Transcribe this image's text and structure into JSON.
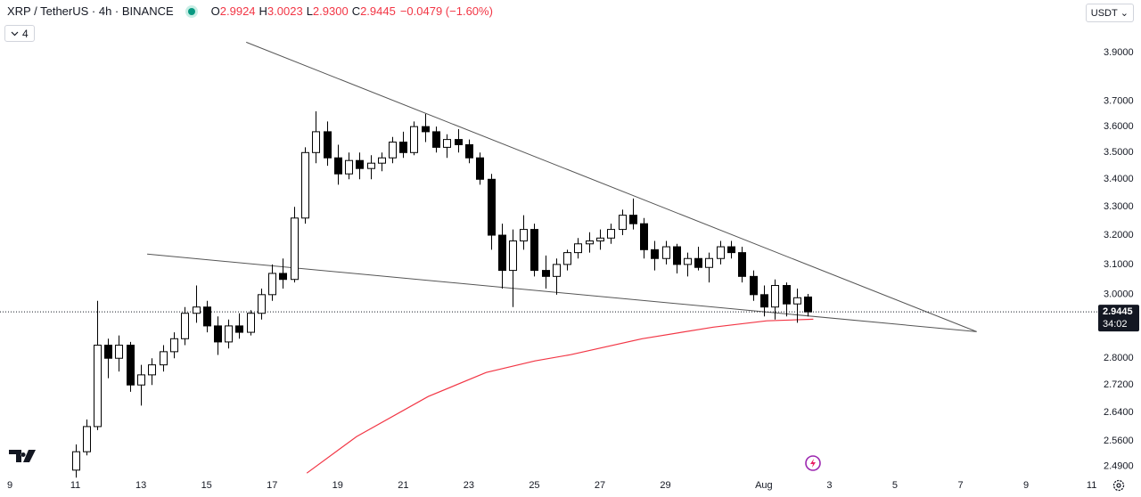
{
  "chart_data": {
    "type": "candlestick",
    "header": {
      "title": "XRP / TetherUS · 4h · BINANCE",
      "ohlc": [
        {
          "label": "O",
          "value": "2.9924"
        },
        {
          "label": "H",
          "value": "3.0023"
        },
        {
          "label": "L",
          "value": "2.9300"
        },
        {
          "label": "C",
          "value": "2.9445"
        }
      ],
      "change": "−0.0479 (−1.60%)",
      "indicators": "4",
      "currency": "USDT"
    },
    "log_scale": true,
    "grid": false,
    "up_color": "#ffffff",
    "down_color": "#000000",
    "x": [
      11,
      11.33,
      11.67,
      12,
      12.33,
      12.67,
      13,
      13.33,
      13.67,
      14,
      14.33,
      14.67,
      15,
      15.33,
      15.67,
      16,
      16.33,
      16.67,
      17,
      17.33,
      17.67,
      18,
      18.33,
      18.67,
      19,
      19.33,
      19.67,
      20,
      20.33,
      20.67,
      21,
      21.33,
      21.67,
      22,
      22.33,
      22.67,
      23,
      23.33,
      23.67,
      24,
      24.33,
      24.67,
      25,
      25.33,
      25.67,
      26,
      26.33,
      26.67,
      27,
      27.33,
      27.67,
      28,
      28.33,
      28.67,
      29,
      29.33,
      29.67,
      30,
      30.33,
      30.67,
      31,
      31.33,
      31.67,
      32,
      32.33,
      32.67,
      33,
      33.33
    ],
    "open": [
      2.48,
      2.53,
      2.6,
      2.84,
      2.8,
      2.84,
      2.72,
      2.75,
      2.78,
      2.82,
      2.86,
      2.94,
      2.96,
      2.9,
      2.85,
      2.9,
      2.88,
      2.94,
      3.0,
      3.07,
      3.05,
      3.26,
      3.5,
      3.58,
      3.48,
      3.42,
      3.47,
      3.44,
      3.46,
      3.48,
      3.54,
      3.5,
      3.6,
      3.58,
      3.52,
      3.55,
      3.53,
      3.48,
      3.4,
      3.2,
      3.08,
      3.18,
      3.22,
      3.08,
      3.06,
      3.1,
      3.14,
      3.17,
      3.18,
      3.19,
      3.22,
      3.27,
      3.24,
      3.15,
      3.12,
      3.16,
      3.1,
      3.12,
      3.09,
      3.12,
      3.16,
      3.14,
      3.06,
      3.0,
      2.96,
      3.03,
      2.97,
      2.9924
    ],
    "high": [
      2.55,
      2.62,
      2.98,
      2.86,
      2.87,
      2.85,
      2.78,
      2.8,
      2.84,
      2.88,
      2.96,
      3.03,
      2.98,
      2.93,
      2.92,
      2.94,
      2.95,
      3.02,
      3.1,
      3.12,
      3.3,
      3.52,
      3.66,
      3.62,
      3.53,
      3.5,
      3.5,
      3.49,
      3.5,
      3.56,
      3.58,
      3.62,
      3.65,
      3.6,
      3.57,
      3.59,
      3.55,
      3.5,
      3.42,
      3.24,
      3.22,
      3.27,
      3.24,
      3.13,
      3.12,
      3.15,
      3.19,
      3.21,
      3.22,
      3.24,
      3.29,
      3.33,
      3.26,
      3.18,
      3.18,
      3.17,
      3.14,
      3.16,
      3.14,
      3.18,
      3.18,
      3.16,
      3.08,
      3.03,
      3.05,
      3.04,
      3.02,
      3.0023
    ],
    "low": [
      2.46,
      2.52,
      2.59,
      2.74,
      2.76,
      2.7,
      2.66,
      2.72,
      2.76,
      2.8,
      2.84,
      2.91,
      2.88,
      2.81,
      2.83,
      2.86,
      2.87,
      2.92,
      2.98,
      3.02,
      3.04,
      3.24,
      3.46,
      3.45,
      3.38,
      3.4,
      3.4,
      3.4,
      3.43,
      3.46,
      3.48,
      3.49,
      3.54,
      3.5,
      3.48,
      3.5,
      3.46,
      3.38,
      3.15,
      3.02,
      2.96,
      3.15,
      3.06,
      3.02,
      3.0,
      3.08,
      3.12,
      3.14,
      3.15,
      3.17,
      3.2,
      3.22,
      3.12,
      3.08,
      3.1,
      3.07,
      3.06,
      3.08,
      3.04,
      3.1,
      3.12,
      3.04,
      2.98,
      2.93,
      2.92,
      2.93,
      2.91,
      2.93
    ],
    "close": [
      2.53,
      2.6,
      2.84,
      2.8,
      2.84,
      2.72,
      2.75,
      2.78,
      2.82,
      2.86,
      2.94,
      2.96,
      2.9,
      2.85,
      2.9,
      2.88,
      2.94,
      3.0,
      3.07,
      3.05,
      3.26,
      3.5,
      3.58,
      3.48,
      3.42,
      3.47,
      3.44,
      3.46,
      3.48,
      3.54,
      3.5,
      3.6,
      3.58,
      3.52,
      3.55,
      3.53,
      3.48,
      3.4,
      3.2,
      3.08,
      3.18,
      3.22,
      3.08,
      3.06,
      3.1,
      3.14,
      3.17,
      3.18,
      3.19,
      3.22,
      3.27,
      3.24,
      3.15,
      3.12,
      3.16,
      3.1,
      3.12,
      3.09,
      3.12,
      3.16,
      3.14,
      3.06,
      3.0,
      2.96,
      3.03,
      2.97,
      2.99,
      2.9445
    ],
    "moving_average": {
      "color": "#f23645",
      "x": [
        18.06,
        19.58,
        21.76,
        23.53,
        25.02,
        26.11,
        28.29,
        30.46,
        32.09,
        33.51
      ],
      "values": [
        2.472,
        2.572,
        2.686,
        2.757,
        2.792,
        2.811,
        2.86,
        2.896,
        2.916,
        2.921
      ]
    },
    "lines": [
      {
        "color": "#555555",
        "x": [
          16.21,
          38.49
        ],
        "y": [
          3.945,
          2.882
        ]
      },
      {
        "color": "#555555",
        "x": [
          13.19,
          38.49
        ],
        "y": [
          3.135,
          2.882
        ]
      }
    ],
    "last_price": 2.9445,
    "countdown": "34:02",
    "xlim": [
      8.7,
      42.2
    ],
    "ylim": [
      2.451,
      4.13
    ],
    "xticks": [
      9,
      11,
      13,
      15,
      17,
      19,
      21,
      23,
      25,
      27,
      29,
      {
        "value": 32,
        "label": "Aug"
      },
      {
        "value": 34,
        "label": "3"
      },
      {
        "value": 36,
        "label": "5"
      },
      {
        "value": 38,
        "label": "7"
      },
      {
        "value": 40,
        "label": "9"
      },
      {
        "value": 42,
        "label": "11"
      }
    ],
    "yticks": [
      {
        "value": 3.9,
        "label": "3.9000"
      },
      {
        "value": 3.7,
        "label": "3.7000"
      },
      {
        "value": 3.6,
        "label": "3.6000"
      },
      {
        "value": 3.5,
        "label": "3.5000"
      },
      {
        "value": 3.4,
        "label": "3.4000"
      },
      {
        "value": 3.3,
        "label": "3.3000"
      },
      {
        "value": 3.2,
        "label": "3.2000"
      },
      {
        "value": 3.1,
        "label": "3.1000"
      },
      {
        "value": 3.0,
        "label": "3.0000"
      },
      {
        "value": 2.8,
        "label": "2.8000"
      },
      {
        "value": 2.72,
        "label": "2.7200"
      },
      {
        "value": 2.64,
        "label": "2.6400"
      },
      {
        "value": 2.56,
        "label": "2.5600"
      },
      {
        "value": 2.49,
        "label": "2.4900"
      }
    ]
  }
}
